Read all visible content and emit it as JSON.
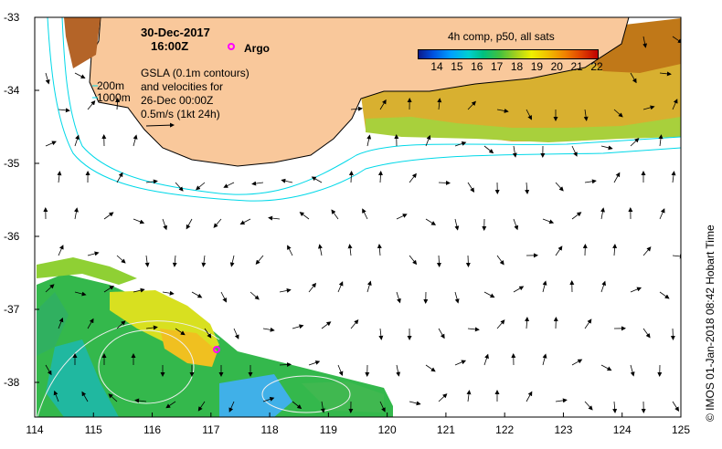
{
  "header": {
    "date": "30-Dec-2017",
    "time": "16:00Z",
    "argo_label": "Argo"
  },
  "gsla_note": {
    "line1": "GSLA (0.1m contours)",
    "line2": "and velocities for",
    "line3": "26-Dec 00:00Z",
    "line4": "0.5m/s (1kt 24h)"
  },
  "bathymetry_labels": {
    "shallow": "200m",
    "deep": "1000m"
  },
  "colorbar": {
    "title": "4h comp, p50, all sats",
    "ticks": [
      "14",
      "15",
      "16",
      "17",
      "18",
      "19",
      "20",
      "21",
      "22"
    ]
  },
  "axes": {
    "x_ticks": [
      "114",
      "115",
      "116",
      "117",
      "118",
      "119",
      "120",
      "121",
      "122",
      "123",
      "124",
      "125"
    ],
    "y_ticks": [
      "-33",
      "-34",
      "-35",
      "-36",
      "-37",
      "-38"
    ]
  },
  "credit": "© IMOS 01-Jan-2018 08:42 Hobart Time",
  "colors": {
    "land": "#f9c89b",
    "coast": "#000000",
    "contour": "#00d8e8",
    "argo": "#ff00ff",
    "frame": "#000000"
  }
}
